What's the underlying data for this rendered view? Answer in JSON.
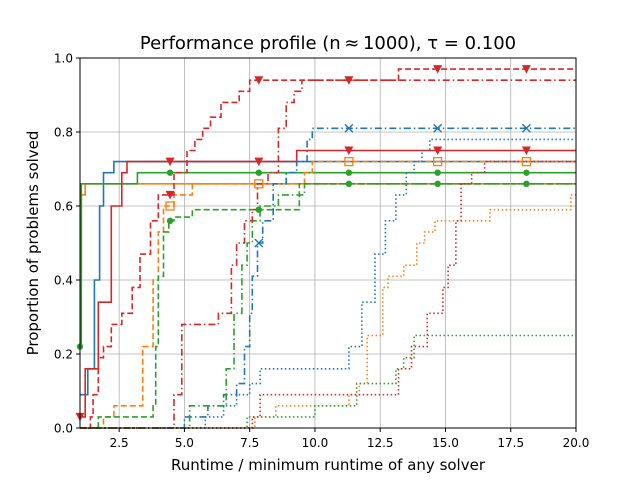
{
  "chart_data": {
    "type": "line",
    "title": "Performance profile (n ≈ 1000), τ = 0.100",
    "xlabel": "Runtime / minimum runtime of any solver",
    "ylabel": "Proportion of problems solved",
    "xlim": [
      1.0,
      20.0
    ],
    "ylim": [
      0.0,
      1.0
    ],
    "grid": true,
    "x_ticks": [
      2.5,
      5.0,
      7.5,
      10.0,
      12.5,
      15.0,
      17.5,
      20.0
    ],
    "x_tick_labels": [
      "2.5",
      "5.0",
      "7.5",
      "10.0",
      "12.5",
      "15.0",
      "17.5",
      "20.0"
    ],
    "y_ticks": [
      0.0,
      0.2,
      0.4,
      0.6,
      0.8,
      1.0
    ],
    "y_tick_labels": [
      "0.0",
      "0.2",
      "0.4",
      "0.6",
      "0.8",
      "1.0"
    ],
    "colors": {
      "blue": "#1f77b4",
      "orange": "#ff7f0e",
      "green": "#2ca02c",
      "red": "#d62728"
    },
    "series": [
      {
        "color": "#1f77b4",
        "linestyle": "solid",
        "marker": "none",
        "steps": [
          [
            1.0,
            0.09
          ],
          [
            1.3,
            0.16
          ],
          [
            1.55,
            0.4
          ],
          [
            1.75,
            0.6
          ],
          [
            1.9,
            0.69
          ],
          [
            2.3,
            0.72
          ],
          [
            20.0,
            0.72
          ]
        ]
      },
      {
        "color": "#ff7f0e",
        "linestyle": "solid",
        "marker": "none",
        "steps": [
          [
            1.0,
            0.41
          ],
          [
            1.05,
            0.63
          ],
          [
            1.2,
            0.66
          ],
          [
            20.0,
            0.66
          ]
        ]
      },
      {
        "color": "#2ca02c",
        "linestyle": "solid",
        "marker": "circle",
        "steps": [
          [
            1.0,
            0.22
          ],
          [
            1.05,
            0.66
          ],
          [
            3.2,
            0.69
          ],
          [
            20.0,
            0.69
          ]
        ],
        "marker_x": [
          1.0,
          4.45,
          7.85,
          11.3,
          14.7,
          18.1
        ]
      },
      {
        "color": "#d62728",
        "linestyle": "solid",
        "marker": "tri_down",
        "steps": [
          [
            1.0,
            0.03
          ],
          [
            1.2,
            0.16
          ],
          [
            1.7,
            0.34
          ],
          [
            2.2,
            0.6
          ],
          [
            2.6,
            0.69
          ],
          [
            2.8,
            0.72
          ],
          [
            9.3,
            0.75
          ],
          [
            20.0,
            0.75
          ]
        ],
        "marker_x": [
          1.0,
          4.45,
          7.85,
          11.3,
          14.7,
          18.1
        ]
      },
      {
        "color": "#ff7f0e",
        "linestyle": "dashed",
        "marker": "square",
        "steps": [
          [
            1.0,
            0.0
          ],
          [
            1.9,
            0.03
          ],
          [
            2.3,
            0.06
          ],
          [
            3.4,
            0.22
          ],
          [
            3.8,
            0.4
          ],
          [
            4.0,
            0.53
          ],
          [
            4.2,
            0.6
          ],
          [
            4.6,
            0.63
          ],
          [
            5.3,
            0.66
          ],
          [
            9.6,
            0.69
          ],
          [
            9.9,
            0.72
          ],
          [
            13.2,
            0.72
          ],
          [
            20.0,
            0.72
          ]
        ],
        "marker_x": [
          4.45,
          7.85,
          11.3,
          14.7,
          18.1
        ]
      },
      {
        "color": "#2ca02c",
        "linestyle": "dashed",
        "marker": "circle",
        "steps": [
          [
            1.0,
            0.0
          ],
          [
            1.7,
            0.03
          ],
          [
            3.8,
            0.06
          ],
          [
            3.9,
            0.22
          ],
          [
            4.0,
            0.41
          ],
          [
            4.2,
            0.53
          ],
          [
            4.4,
            0.56
          ],
          [
            4.6,
            0.57
          ],
          [
            5.3,
            0.59
          ],
          [
            9.4,
            0.66
          ],
          [
            20.0,
            0.66
          ]
        ],
        "marker_x": [
          4.45,
          7.85,
          11.3,
          14.7,
          18.1
        ]
      },
      {
        "color": "#d62728",
        "linestyle": "dashed",
        "marker": "tri_down",
        "steps": [
          [
            1.0,
            0.0
          ],
          [
            1.4,
            0.03
          ],
          [
            1.5,
            0.09
          ],
          [
            1.7,
            0.19
          ],
          [
            1.9,
            0.22
          ],
          [
            2.2,
            0.28
          ],
          [
            2.6,
            0.31
          ],
          [
            3.0,
            0.38
          ],
          [
            3.3,
            0.47
          ],
          [
            3.7,
            0.56
          ],
          [
            4.0,
            0.63
          ],
          [
            4.6,
            0.69
          ],
          [
            5.1,
            0.75
          ],
          [
            5.4,
            0.78
          ],
          [
            5.7,
            0.81
          ],
          [
            6.0,
            0.84
          ],
          [
            6.4,
            0.88
          ],
          [
            7.1,
            0.91
          ],
          [
            7.5,
            0.94
          ],
          [
            13.2,
            0.97
          ],
          [
            20.0,
            0.97
          ]
        ],
        "marker_x": [
          4.45,
          7.85,
          11.3,
          14.7,
          18.1
        ]
      },
      {
        "color": "#1f77b4",
        "linestyle": "dashdot",
        "marker": "x",
        "steps": [
          [
            1.0,
            0.0
          ],
          [
            5.0,
            0.03
          ],
          [
            5.9,
            0.06
          ],
          [
            6.5,
            0.09
          ],
          [
            7.0,
            0.12
          ],
          [
            7.3,
            0.22
          ],
          [
            7.5,
            0.31
          ],
          [
            7.6,
            0.41
          ],
          [
            7.8,
            0.5
          ],
          [
            8.0,
            0.56
          ],
          [
            8.4,
            0.66
          ],
          [
            8.9,
            0.69
          ],
          [
            9.3,
            0.72
          ],
          [
            9.7,
            0.78
          ],
          [
            9.9,
            0.81
          ],
          [
            20.0,
            0.81
          ]
        ],
        "marker_x": [
          7.85,
          11.3,
          14.7,
          18.1
        ]
      },
      {
        "color": "#2ca02c",
        "linestyle": "dashdot",
        "marker": "none",
        "steps": [
          [
            1.0,
            0.0
          ],
          [
            5.2,
            0.06
          ],
          [
            6.6,
            0.16
          ],
          [
            6.9,
            0.31
          ],
          [
            7.2,
            0.44
          ],
          [
            7.4,
            0.5
          ],
          [
            7.6,
            0.56
          ],
          [
            7.9,
            0.6
          ],
          [
            8.6,
            0.63
          ],
          [
            9.6,
            0.66
          ],
          [
            20.0,
            0.66
          ]
        ]
      },
      {
        "color": "#d62728",
        "linestyle": "dashdot",
        "marker": "none",
        "steps": [
          [
            1.0,
            0.0
          ],
          [
            4.6,
            0.09
          ],
          [
            4.9,
            0.28
          ],
          [
            6.3,
            0.31
          ],
          [
            6.8,
            0.44
          ],
          [
            7.0,
            0.5
          ],
          [
            7.3,
            0.56
          ],
          [
            7.6,
            0.59
          ],
          [
            7.8,
            0.66
          ],
          [
            8.2,
            0.69
          ],
          [
            8.6,
            0.81
          ],
          [
            8.9,
            0.88
          ],
          [
            9.2,
            0.91
          ],
          [
            9.5,
            0.94
          ],
          [
            20.0,
            0.94
          ]
        ]
      },
      {
        "color": "#1f77b4",
        "linestyle": "dotted",
        "marker": "none",
        "steps": [
          [
            1.0,
            0.0
          ],
          [
            5.8,
            0.03
          ],
          [
            6.5,
            0.06
          ],
          [
            7.0,
            0.09
          ],
          [
            7.5,
            0.12
          ],
          [
            7.9,
            0.16
          ],
          [
            8.5,
            0.16
          ],
          [
            10.3,
            0.16
          ],
          [
            11.3,
            0.22
          ],
          [
            11.8,
            0.34
          ],
          [
            12.3,
            0.47
          ],
          [
            12.7,
            0.56
          ],
          [
            13.1,
            0.63
          ],
          [
            13.5,
            0.69
          ],
          [
            13.8,
            0.72
          ],
          [
            14.1,
            0.75
          ],
          [
            14.4,
            0.78
          ],
          [
            20.0,
            0.78
          ]
        ]
      },
      {
        "color": "#ff7f0e",
        "linestyle": "dotted",
        "marker": "none",
        "steps": [
          [
            1.0,
            0.0
          ],
          [
            7.7,
            0.03
          ],
          [
            8.5,
            0.06
          ],
          [
            11.3,
            0.09
          ],
          [
            11.7,
            0.12
          ],
          [
            12.0,
            0.25
          ],
          [
            12.6,
            0.38
          ],
          [
            12.8,
            0.41
          ],
          [
            13.4,
            0.44
          ],
          [
            13.9,
            0.5
          ],
          [
            14.2,
            0.53
          ],
          [
            14.6,
            0.56
          ],
          [
            16.7,
            0.59
          ],
          [
            19.8,
            0.63
          ],
          [
            20.0,
            0.63
          ]
        ]
      },
      {
        "color": "#2ca02c",
        "linestyle": "dotted",
        "marker": "none",
        "steps": [
          [
            1.0,
            0.0
          ],
          [
            7.4,
            0.03
          ],
          [
            10.0,
            0.06
          ],
          [
            11.6,
            0.12
          ],
          [
            13.1,
            0.16
          ],
          [
            13.4,
            0.19
          ],
          [
            13.8,
            0.25
          ],
          [
            20.0,
            0.25
          ]
        ]
      },
      {
        "color": "#d62728",
        "linestyle": "dotted",
        "marker": "none",
        "steps": [
          [
            1.0,
            0.0
          ],
          [
            7.6,
            0.03
          ],
          [
            7.9,
            0.09
          ],
          [
            11.2,
            0.09
          ],
          [
            13.2,
            0.16
          ],
          [
            13.7,
            0.22
          ],
          [
            14.3,
            0.31
          ],
          [
            14.9,
            0.38
          ],
          [
            15.1,
            0.44
          ],
          [
            15.4,
            0.56
          ],
          [
            15.6,
            0.66
          ],
          [
            16.0,
            0.69
          ],
          [
            16.5,
            0.72
          ],
          [
            20.0,
            0.72
          ]
        ]
      }
    ]
  }
}
